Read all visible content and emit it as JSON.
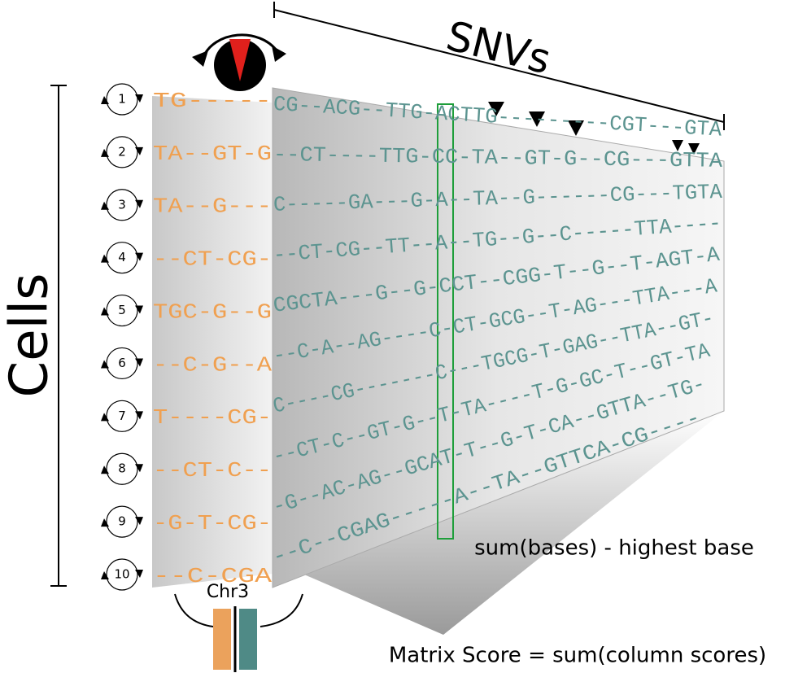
{
  "title": "SNVs",
  "y_label": "Cells",
  "chromosome": "Chr3",
  "column_score": "sum(bases) - highest base",
  "matrix_score": "Matrix Score = sum(column scores)",
  "cells": [
    {
      "label": "1",
      "left": "TG-----",
      "right": "CG--ACG--TTG-ACTTG---------CGT---GTA"
    },
    {
      "label": "2",
      "left": "TA--GT-G",
      "right": "--CT----TTG-CC-TA--GT-G--CG---GTTA"
    },
    {
      "label": "3",
      "left": "TA--G---",
      "right": "C-----GA---G-A--TA--G------CG---TGTA"
    },
    {
      "label": "4",
      "left": "--CT-CG-",
      "right": "--CT-CG--TT--A--TG--G--C-----TTA----"
    },
    {
      "label": "5",
      "left": "TGC-G--G",
      "right": "CGCTA---G--G-CCT--CGG-T--G--T-AGT-A"
    },
    {
      "label": "6",
      "left": "--C-G--A",
      "right": "--C-A--AG----C-CT-GCG--T-AG---TTA---A"
    },
    {
      "label": "7",
      "left": "T----CG-",
      "right": "C----CG-------C---TGCG-T-GAG--TTA--GT-"
    },
    {
      "label": "8",
      "left": "--CT-C--",
      "right": "--CT-C--GT-G--T-TA----T-G-GC-T--GT-TA"
    },
    {
      "label": "9",
      "left": "-G-T-CG-",
      "right": "-G--AC-AG--GCAT-T--G-T-CA--GTTA--TG-"
    },
    {
      "label": "10",
      "left": "--C-CGA",
      "right": "--C--CGAG-----A--TA--GTTCA-CG----"
    }
  ]
}
